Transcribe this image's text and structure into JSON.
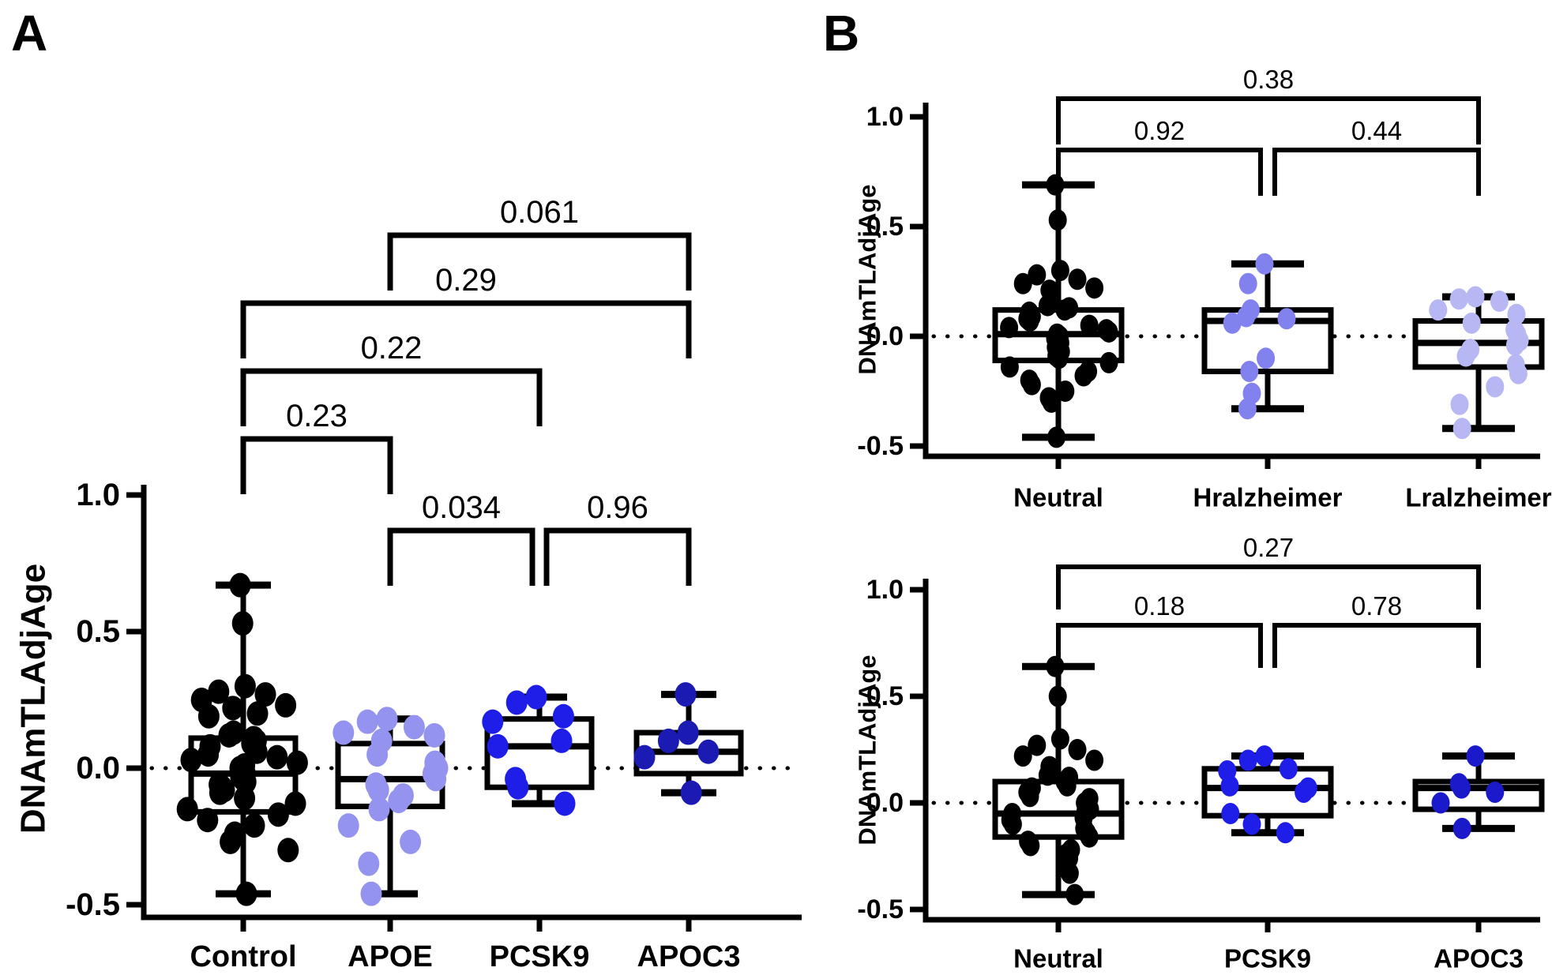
{
  "figure": {
    "panel_a_label": "A",
    "panel_b_label": "B"
  },
  "chart_data": [
    {
      "id": "panel-a",
      "type": "box-scatter",
      "ylabel": "DNAmTLAdjAge",
      "ylim": [
        -0.5,
        1.0
      ],
      "grid": false,
      "zero_line_dotted": true,
      "yticks": [
        {
          "value": 1.0,
          "label": "1.0"
        },
        {
          "value": 0.5,
          "label": "0.5"
        },
        {
          "value": 0.0,
          "label": "0.0"
        },
        {
          "value": -0.5,
          "label": "-0.5"
        }
      ],
      "groups": [
        {
          "label": "Control",
          "color": "#000000",
          "box": {
            "q1": -0.16,
            "median": -0.02,
            "q3": 0.11,
            "whisker_low": -0.46,
            "whisker_high": 0.67
          },
          "points": [
            0.67,
            0.53,
            0.3,
            0.28,
            0.27,
            0.25,
            0.23,
            0.22,
            0.2,
            0.19,
            0.13,
            0.12,
            0.11,
            0.1,
            0.09,
            0.08,
            0.06,
            0.05,
            0.04,
            0.03,
            0.02,
            0.01,
            0.0,
            -0.01,
            -0.02,
            -0.03,
            -0.04,
            -0.05,
            -0.06,
            -0.07,
            -0.08,
            -0.09,
            -0.11,
            -0.13,
            -0.15,
            -0.17,
            -0.19,
            -0.21,
            -0.24,
            -0.27,
            -0.3,
            -0.46
          ]
        },
        {
          "label": "APOE",
          "color": "#9494F0",
          "box": {
            "q1": -0.14,
            "median": -0.04,
            "q3": 0.09,
            "whisker_low": -0.46,
            "whisker_high": 0.18
          },
          "points": [
            0.18,
            0.17,
            0.15,
            0.13,
            0.12,
            0.1,
            0.05,
            0.02,
            0.0,
            -0.02,
            -0.04,
            -0.06,
            -0.08,
            -0.1,
            -0.12,
            -0.15,
            -0.21,
            -0.27,
            -0.35,
            -0.46
          ]
        },
        {
          "label": "PCSK9",
          "color": "#1E1EE8",
          "box": {
            "q1": -0.07,
            "median": 0.08,
            "q3": 0.18,
            "whisker_low": -0.13,
            "whisker_high": 0.26
          },
          "points": [
            0.26,
            0.24,
            0.19,
            0.17,
            0.1,
            0.08,
            -0.04,
            -0.07,
            -0.13
          ]
        },
        {
          "label": "APOC3",
          "color": "#1B1BB4",
          "box": {
            "q1": -0.02,
            "median": 0.06,
            "q3": 0.13,
            "whisker_low": -0.09,
            "whisker_high": 0.27
          },
          "points": [
            0.27,
            0.13,
            0.1,
            0.06,
            0.04,
            -0.09
          ]
        }
      ],
      "brackets": [
        {
          "label": "0.061",
          "from": "APOE",
          "to": "APOC3",
          "row": 0
        },
        {
          "label": "0.29",
          "from": "Control",
          "to": "APOC3",
          "row": 1
        },
        {
          "label": "0.22",
          "from": "Control",
          "to": "PCSK9",
          "row": 2
        },
        {
          "label": "0.23",
          "from": "Control",
          "to": "APOE",
          "row": 3
        },
        {
          "label": "0.034",
          "from": "APOE",
          "to": "PCSK9",
          "row": 4
        },
        {
          "label": "0.96",
          "from": "PCSK9",
          "to": "APOC3",
          "row": 4
        }
      ]
    },
    {
      "id": "panel-b-top",
      "type": "box-scatter",
      "ylabel": "DNAmTLAdjAge",
      "ylim": [
        -0.5,
        1.0
      ],
      "grid": false,
      "zero_line_dotted": true,
      "yticks": [
        {
          "value": 1.0,
          "label": "1.0"
        },
        {
          "value": 0.5,
          "label": "0.5"
        },
        {
          "value": 0.0,
          "label": "0.0"
        },
        {
          "value": -0.5,
          "label": "-0.5"
        }
      ],
      "groups": [
        {
          "label": "Neutral",
          "color": "#000000",
          "box": {
            "q1": -0.11,
            "median": 0.01,
            "q3": 0.12,
            "whisker_low": -0.46,
            "whisker_high": 0.69
          },
          "points": [
            0.69,
            0.53,
            0.3,
            0.28,
            0.26,
            0.24,
            0.22,
            0.21,
            0.16,
            0.14,
            0.13,
            0.12,
            0.11,
            0.09,
            0.08,
            0.07,
            0.05,
            0.04,
            0.03,
            0.02,
            0.01,
            0.0,
            -0.01,
            -0.02,
            -0.03,
            -0.05,
            -0.06,
            -0.07,
            -0.09,
            -0.1,
            -0.12,
            -0.14,
            -0.16,
            -0.18,
            -0.2,
            -0.22,
            -0.25,
            -0.28,
            -0.3,
            -0.46
          ]
        },
        {
          "label": "Hralzheimer",
          "color": "#8282EE",
          "box": {
            "q1": -0.16,
            "median": 0.07,
            "q3": 0.12,
            "whisker_low": -0.33,
            "whisker_high": 0.33
          },
          "points": [
            0.33,
            0.24,
            0.12,
            0.09,
            0.08,
            0.06,
            -0.1,
            -0.16,
            -0.26,
            -0.33
          ]
        },
        {
          "label": "Lralzheimer",
          "color": "#B7B7F4",
          "box": {
            "q1": -0.14,
            "median": -0.03,
            "q3": 0.07,
            "whisker_low": -0.42,
            "whisker_high": 0.18
          },
          "points": [
            0.18,
            0.17,
            0.16,
            0.12,
            0.1,
            0.06,
            0.03,
            0.01,
            -0.02,
            -0.04,
            -0.06,
            -0.09,
            -0.13,
            -0.17,
            -0.23,
            -0.31,
            -0.42
          ]
        }
      ],
      "brackets": [
        {
          "label": "0.38",
          "from": "Neutral",
          "to": "Lralzheimer",
          "row": 0
        },
        {
          "label": "0.92",
          "from": "Neutral",
          "to": "Hralzheimer",
          "row": 1
        },
        {
          "label": "0.44",
          "from": "Hralzheimer",
          "to": "Lralzheimer",
          "row": 1
        }
      ]
    },
    {
      "id": "panel-b-bottom",
      "type": "box-scatter",
      "ylabel": "DNAmTLAdjAge",
      "ylim": [
        -0.5,
        1.0
      ],
      "grid": false,
      "zero_line_dotted": true,
      "yticks": [
        {
          "value": 1.0,
          "label": "1.0"
        },
        {
          "value": 0.5,
          "label": "0.5"
        },
        {
          "value": 0.0,
          "label": "0.0"
        },
        {
          "value": -0.5,
          "label": "-0.5"
        }
      ],
      "groups": [
        {
          "label": "Neutral",
          "color": "#000000",
          "box": {
            "q1": -0.16,
            "median": -0.05,
            "q3": 0.1,
            "whisker_low": -0.43,
            "whisker_high": 0.64
          },
          "points": [
            0.64,
            0.5,
            0.3,
            0.27,
            0.25,
            0.22,
            0.2,
            0.17,
            0.15,
            0.13,
            0.12,
            0.1,
            0.08,
            0.07,
            0.05,
            0.03,
            0.02,
            0.0,
            -0.01,
            -0.03,
            -0.04,
            -0.05,
            -0.07,
            -0.08,
            -0.1,
            -0.12,
            -0.14,
            -0.16,
            -0.18,
            -0.2,
            -0.22,
            -0.24,
            -0.26,
            -0.29,
            -0.31,
            -0.33,
            -0.43
          ]
        },
        {
          "label": "PCSK9",
          "color": "#1E1EE8",
          "box": {
            "q1": -0.06,
            "median": 0.07,
            "q3": 0.16,
            "whisker_low": -0.14,
            "whisker_high": 0.22
          },
          "points": [
            0.22,
            0.2,
            0.16,
            0.15,
            0.08,
            0.07,
            0.05,
            -0.05,
            -0.1,
            -0.14
          ]
        },
        {
          "label": "APOC3",
          "color": "#1A1ACA",
          "box": {
            "q1": -0.03,
            "median": 0.07,
            "q3": 0.1,
            "whisker_low": -0.12,
            "whisker_high": 0.22
          },
          "points": [
            0.22,
            0.09,
            0.07,
            0.05,
            0.0,
            -0.12
          ]
        }
      ],
      "brackets": [
        {
          "label": "0.27",
          "from": "Neutral",
          "to": "APOC3",
          "row": 0
        },
        {
          "label": "0.18",
          "from": "Neutral",
          "to": "PCSK9",
          "row": 1
        },
        {
          "label": "0.78",
          "from": "PCSK9",
          "to": "APOC3",
          "row": 1
        }
      ]
    }
  ]
}
